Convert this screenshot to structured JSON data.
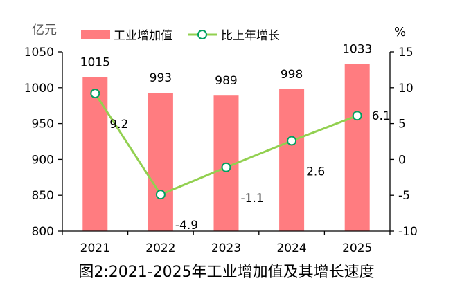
{
  "chart_data": {
    "type": "bar",
    "categories": [
      "2021",
      "2022",
      "2023",
      "2024",
      "2025"
    ],
    "series": [
      {
        "name": "工业增加值",
        "type": "bar",
        "axis": "left",
        "values": [
          1015,
          993,
          989,
          998,
          1033
        ],
        "color": "#ff7c80"
      },
      {
        "name": "比上年增长",
        "type": "line",
        "axis": "right",
        "values": [
          9.2,
          -4.9,
          -1.1,
          2.6,
          6.1
        ],
        "color": "#92d050",
        "marker_edge": "#00a060"
      }
    ],
    "y_left": {
      "unit": "亿元",
      "min": 800,
      "max": 1050,
      "ticks": [
        800,
        850,
        900,
        950,
        1000,
        1050
      ]
    },
    "y_right": {
      "unit": "%",
      "min": -10,
      "max": 15,
      "ticks": [
        -10,
        -5,
        0,
        5,
        10,
        15
      ]
    },
    "legend_position": "top",
    "title": "图2:2021-2025年工业增加值及其增长速度"
  }
}
